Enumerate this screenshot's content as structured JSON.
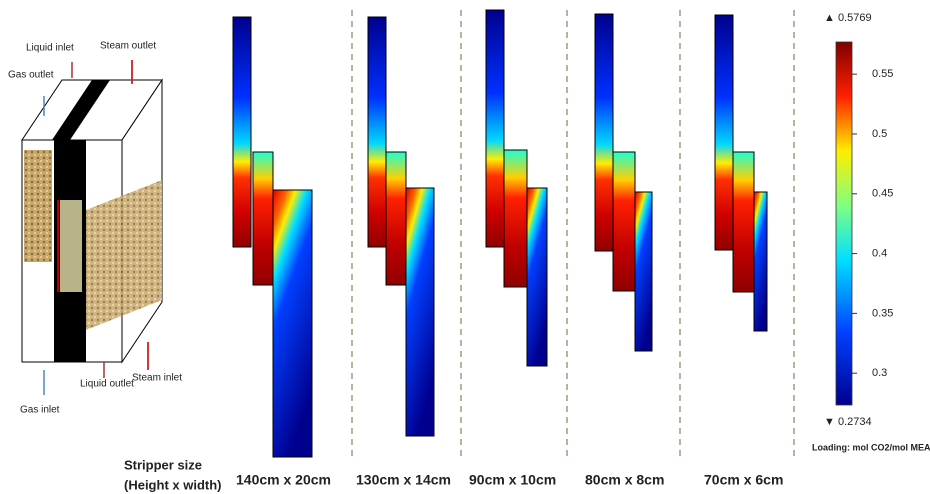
{
  "schematic": {
    "labels": {
      "liquid_inlet": "Liquid inlet",
      "steam_outlet": "Steam outlet",
      "gas_outlet": "Gas outlet",
      "gas_inlet": "Gas inlet",
      "liquid_outlet": "Liquid outlet",
      "steam_inlet": "Steam inlet"
    }
  },
  "size_caption": [
    "Stripper size",
    "(Height x width)"
  ],
  "panels": [
    {
      "label": "140cm x 20cm"
    },
    {
      "label": "130cm x 14cm"
    },
    {
      "label": "90cm x 10cm"
    },
    {
      "label": "80cm x 8cm"
    },
    {
      "label": "70cm x 6cm"
    }
  ],
  "colorbar": {
    "max": {
      "value": 0.5769,
      "label": "▲ 0.5769"
    },
    "min": {
      "value": 0.2734,
      "label": "▼ 0.2734"
    },
    "ticks": [
      0.55,
      0.5,
      0.45,
      0.4,
      0.35,
      0.3
    ],
    "title": "Loading: mol CO2/mol MEA"
  }
}
